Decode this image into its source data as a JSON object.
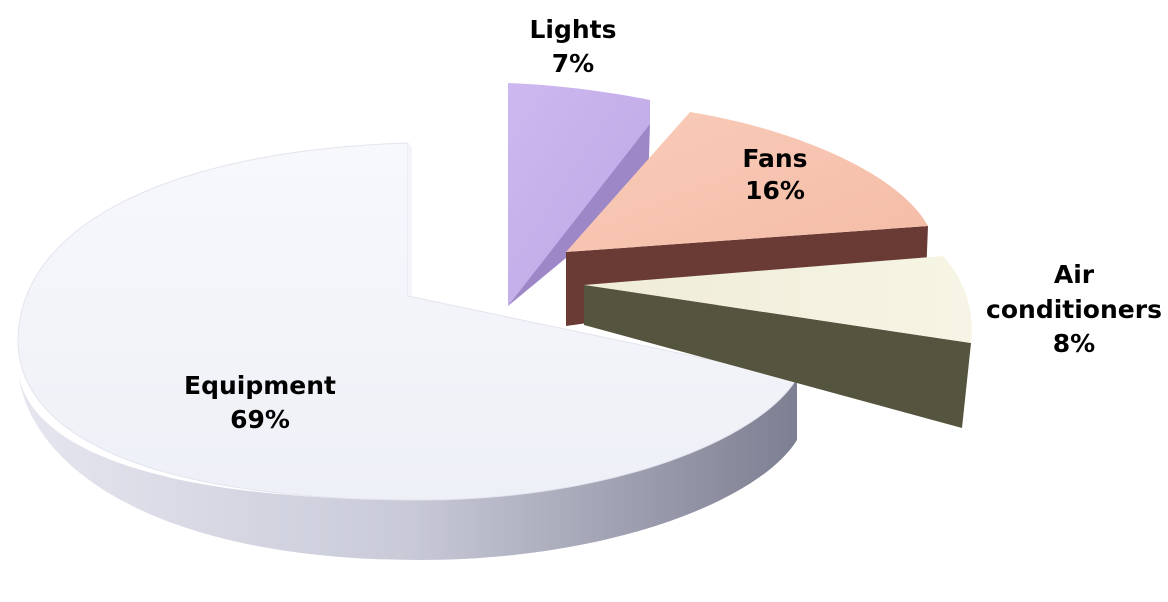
{
  "chart_data": {
    "type": "pie",
    "style": "3d-exploded",
    "slices": [
      {
        "label": "Lights",
        "value": 7,
        "display": "7%",
        "color": "#c9b3ec",
        "side_color": "#9b85c4"
      },
      {
        "label": "Fans",
        "value": 16,
        "display": "16%",
        "color": "#f7c4b0",
        "side_color": "#6a3a34"
      },
      {
        "label": "Air conditioners",
        "value": 8,
        "display": "8%",
        "color": "#f1efdc",
        "side_color": "#55543f"
      },
      {
        "label": "Equipment",
        "value": 69,
        "display": "69%",
        "color": "#f2f3f9",
        "side_color": "#9a9cae"
      }
    ],
    "legend": "none"
  }
}
